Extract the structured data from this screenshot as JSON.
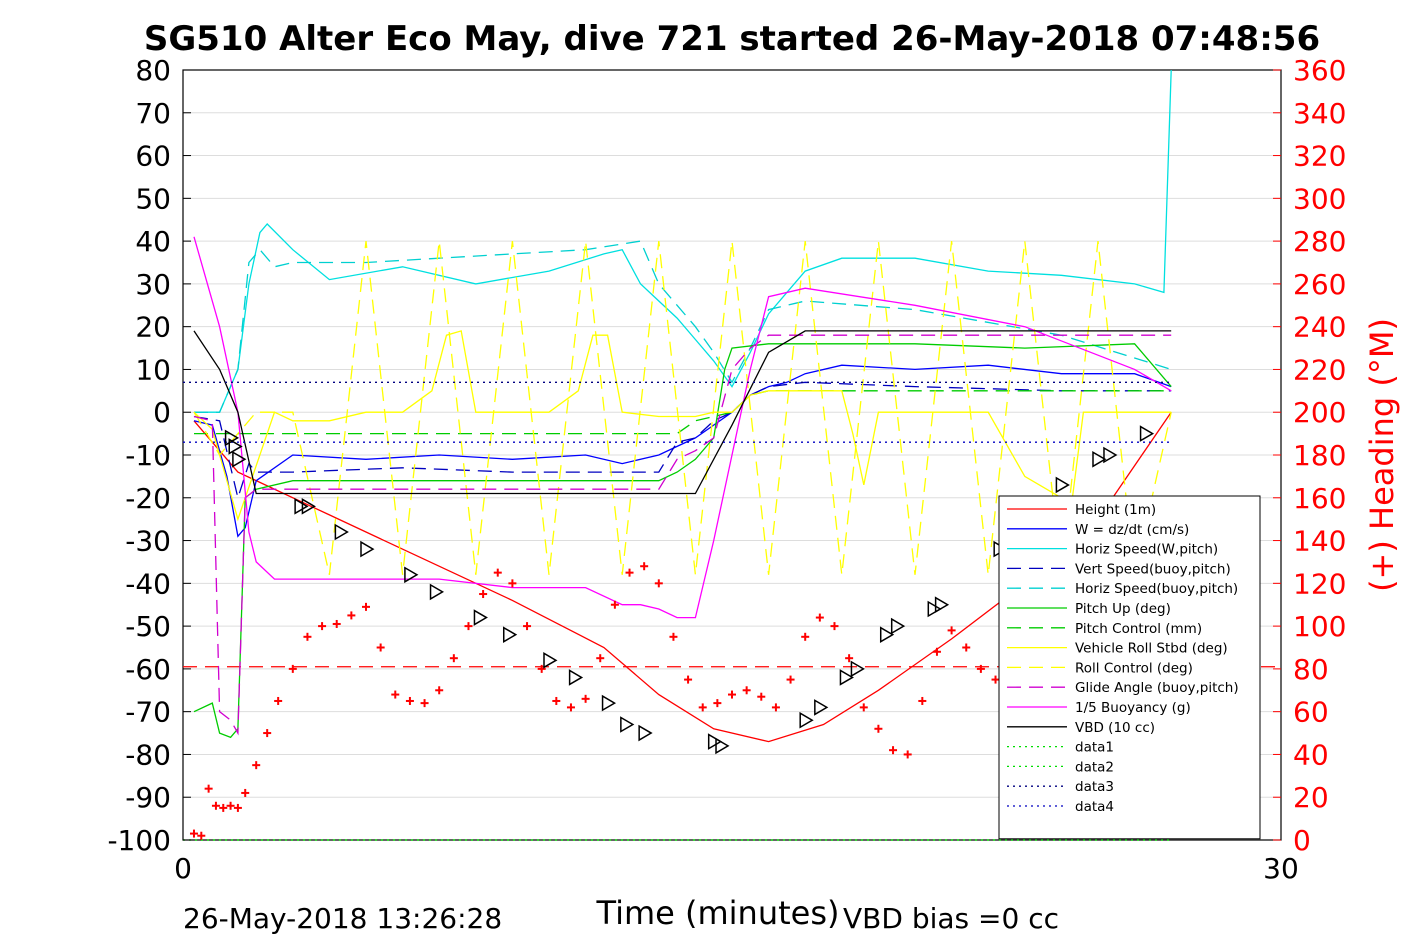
{
  "chart_data": {
    "type": "line",
    "title": "SG510 Alter Eco May, dive 721 started 26-May-2018 07:48:56",
    "xlabel": "Time (minutes)",
    "ylabel": "",
    "y2label": "(+) Heading (°M)",
    "xlim": [
      0,
      30
    ],
    "ylim": [
      -100,
      80
    ],
    "y2lim": [
      0,
      360
    ],
    "xticks": [
      "0",
      "30"
    ],
    "yticks": [
      "80",
      "70",
      "60",
      "50",
      "40",
      "30",
      "20",
      "10",
      "0",
      "-10",
      "-20",
      "-30",
      "-40",
      "-50",
      "-60",
      "-70",
      "-80",
      "-90",
      "-100"
    ],
    "y2ticks": [
      "360",
      "340",
      "320",
      "300",
      "280",
      "260",
      "240",
      "220",
      "200",
      "180",
      "160",
      "140",
      "120",
      "100",
      "80",
      "60",
      "40",
      "20",
      "0"
    ],
    "grid": true,
    "legend_position": "right",
    "series": [
      {
        "name": "Height (1m)",
        "color": "#ff0000",
        "style": "solid",
        "x": [
          0.3,
          1.5,
          4.0,
          6.5,
          9.0,
          11.5,
          13.0,
          14.5,
          16.0,
          17.5,
          19.0,
          21.0,
          23.0,
          25.0,
          27.0
        ],
        "y": [
          -2,
          -14,
          -24,
          -34,
          -44,
          -55,
          -66,
          -74,
          -77,
          -73,
          -65,
          -53,
          -40,
          -25,
          0
        ]
      },
      {
        "name": "W = dz/dt (cm/s)",
        "color": "#0000ff",
        "style": "solid",
        "x": [
          0.3,
          0.8,
          1.2,
          1.5,
          1.7,
          2.0,
          3.0,
          5.0,
          7.0,
          9.0,
          11.0,
          12.0,
          13.0,
          13.5,
          14.0,
          14.5,
          15.0,
          15.5,
          16.0,
          16.5,
          17.0,
          18.0,
          20.0,
          22.0,
          24.0,
          26.0,
          27.0
        ],
        "y": [
          -2,
          -3,
          -15,
          -29,
          -27,
          -16,
          -10,
          -11,
          -10,
          -11,
          -10,
          -12,
          -10,
          -8,
          -6,
          -3,
          0,
          4,
          6,
          7,
          9,
          11,
          10,
          11,
          9,
          9,
          6
        ]
      },
      {
        "name": "Horiz Speed(W,pitch)",
        "color": "#00e0e0",
        "style": "solid",
        "x": [
          0.3,
          1.0,
          1.5,
          1.8,
          2.1,
          2.3,
          3.0,
          4.0,
          6.0,
          8.0,
          10.0,
          11.5,
          12.0,
          12.5,
          13.0,
          13.5,
          14.0,
          14.5,
          15.0,
          15.5,
          16.0,
          16.5,
          17.0,
          18.0,
          20.0,
          22.0,
          24.0,
          26.0,
          26.8,
          27.0
        ],
        "y": [
          0,
          0,
          10,
          30,
          42,
          44,
          38,
          31,
          34,
          30,
          33,
          37,
          38,
          30,
          26,
          22,
          17,
          12,
          6,
          14,
          23,
          28,
          33,
          36,
          36,
          33,
          32,
          30,
          28,
          80
        ]
      },
      {
        "name": "Vert Speed(buoy,pitch)",
        "color": "#0000c0",
        "style": "dashed",
        "x": [
          0.3,
          1.0,
          1.5,
          1.8,
          2.0,
          3.0,
          6.0,
          9.0,
          12.0,
          13.0,
          13.5,
          14.0,
          14.5,
          15.0,
          15.5,
          16.0,
          17.0,
          20.0,
          24.0,
          27.0
        ],
        "y": [
          -1,
          -2,
          -20,
          -12,
          -14,
          -14,
          -13,
          -14,
          -14,
          -14,
          -7,
          -6,
          -2,
          0,
          4,
          6,
          7,
          6,
          5,
          5
        ]
      },
      {
        "name": "Horiz Speed(buoy,pitch)",
        "color": "#00d0d0",
        "style": "dashed",
        "x": [
          0.3,
          1.0,
          1.5,
          1.8,
          2.1,
          2.5,
          3.0,
          5.0,
          7.0,
          9.0,
          11.0,
          12.5,
          13.0,
          13.5,
          14.0,
          14.5,
          15.0,
          15.5,
          16.0,
          17.0,
          20.0,
          24.0,
          27.0
        ],
        "y": [
          0,
          0,
          10,
          35,
          38,
          34,
          35,
          35,
          36,
          37,
          38,
          40,
          30,
          25,
          20,
          14,
          7,
          15,
          24,
          26,
          24,
          18,
          10
        ]
      },
      {
        "name": "Pitch Up (deg)",
        "color": "#00cc00",
        "style": "solid",
        "x": [
          0.3,
          0.8,
          1.0,
          1.3,
          1.5,
          1.7,
          2.0,
          3.0,
          5.0,
          7.0,
          9.0,
          11.0,
          12.0,
          13.0,
          13.5,
          14.0,
          14.5,
          14.8,
          15.0,
          16.0,
          17.0,
          20.0,
          23.0,
          26.0,
          27.0
        ],
        "y": [
          -70,
          -68,
          -75,
          -76,
          -74,
          -20,
          -18,
          -16,
          -16,
          -16,
          -16,
          -16,
          -16,
          -16,
          -14,
          -11,
          -6,
          10,
          15,
          16,
          16,
          16,
          15,
          16,
          6
        ]
      },
      {
        "name": "Pitch Control (mm)",
        "color": "#00cc00",
        "style": "dashed",
        "x": [
          0.3,
          1.0,
          1.5,
          2.0,
          3.0,
          6.0,
          9.0,
          12.0,
          13.0,
          13.5,
          14.0,
          14.5,
          15.0,
          15.5,
          16.0,
          20.0,
          24.0,
          27.0
        ],
        "y": [
          -5,
          -5,
          -5,
          -5,
          -5,
          -5,
          -5,
          -5,
          -5,
          -5,
          -2,
          -1,
          0,
          4,
          5,
          5,
          5,
          5
        ]
      },
      {
        "name": "Vehicle Roll Stbd (deg)",
        "color": "#ffff00",
        "style": "solid",
        "x": [
          0.3,
          0.8,
          1.5,
          2.5,
          3.0,
          4.0,
          5.0,
          6.0,
          6.8,
          7.2,
          7.6,
          8.0,
          9.0,
          10.0,
          10.8,
          11.2,
          11.6,
          12.0,
          13.0,
          14.0,
          14.5,
          15.0,
          15.5,
          16.0,
          17.0,
          18.0,
          18.3,
          18.6,
          19.0,
          20.0,
          22.0,
          23.0,
          24.0,
          24.3,
          24.6,
          25.0,
          26.0,
          27.0
        ],
        "y": [
          0,
          -4,
          -25,
          0,
          -2,
          -2,
          0,
          0,
          5,
          18,
          19,
          0,
          0,
          0,
          5,
          18,
          18,
          0,
          -1,
          -1,
          0,
          0,
          4,
          5,
          5,
          5,
          -5,
          -17,
          0,
          0,
          0,
          -15,
          -20,
          -20,
          0,
          0,
          0,
          0
        ]
      },
      {
        "name": "Roll Control (deg)",
        "color": "#ffff00",
        "style": "dashed",
        "x": [
          0.3,
          1.0,
          2.0,
          3.0,
          4.0,
          5.0,
          6.0,
          7.0,
          8.0,
          9.0,
          10.0,
          11.0,
          12.0,
          13.0,
          14.0,
          15.0,
          16.0,
          17.0,
          18.0,
          19.0,
          20.0,
          21.0,
          22.0,
          23.0,
          24.0,
          25.0,
          26.0,
          27.0
        ],
        "y": [
          0,
          -10,
          0,
          0,
          -38,
          40,
          -38,
          40,
          -38,
          40,
          -38,
          40,
          -38,
          40,
          -38,
          40,
          -38,
          40,
          -38,
          40,
          -38,
          40,
          -38,
          40,
          -38,
          40,
          -38,
          0
        ]
      },
      {
        "name": "Glide Angle (buoy,pitch)",
        "color": "#d000d0",
        "style": "dashed",
        "x": [
          0.3,
          0.8,
          1.0,
          1.3,
          1.5,
          1.7,
          2.0,
          3.0,
          6.0,
          9.0,
          12.0,
          13.0,
          13.5,
          14.0,
          14.5,
          15.0,
          15.5,
          16.0,
          17.0,
          20.0,
          24.0,
          27.0
        ],
        "y": [
          -1,
          -2,
          -70,
          -72,
          -75,
          -20,
          -18,
          -18,
          -18,
          -18,
          -18,
          -18,
          -11,
          -9,
          -6,
          10,
          15,
          18,
          18,
          18,
          18,
          18
        ]
      },
      {
        "name": "1/5 Buoyancy (g)",
        "color": "#ff00ff",
        "style": "solid",
        "x": [
          0.3,
          1.0,
          1.5,
          1.8,
          2.0,
          2.5,
          3.0,
          5.0,
          7.0,
          9.0,
          10.0,
          11.0,
          12.0,
          12.5,
          13.0,
          13.5,
          14.0,
          14.5,
          15.0,
          15.5,
          16.0,
          17.0,
          20.0,
          23.0,
          26.0,
          27.0
        ],
        "y": [
          41,
          20,
          0,
          -28,
          -35,
          -39,
          -39,
          -39,
          -39,
          -41,
          -41,
          -41,
          -45,
          -45,
          -46,
          -48,
          -48,
          -30,
          -10,
          10,
          27,
          29,
          25,
          20,
          10,
          5
        ]
      },
      {
        "name": "VBD (10 cc)",
        "color": "#000000",
        "style": "solid",
        "x": [
          0.3,
          1.0,
          1.5,
          2.0,
          3.0,
          6.0,
          9.0,
          12.0,
          13.0,
          14.0,
          15.0,
          16.0,
          17.0,
          20.0,
          24.0,
          27.0
        ],
        "y": [
          19,
          10,
          0,
          -19,
          -19,
          -19,
          -19,
          -19,
          -19,
          -19,
          -3,
          14,
          19,
          19,
          19,
          19
        ]
      },
      {
        "name": "data1",
        "color": "#00dd00",
        "style": "dotted",
        "x": [
          0,
          27
        ],
        "y": [
          -100,
          -100
        ]
      },
      {
        "name": "data2",
        "color": "#00dd00",
        "style": "dotted",
        "x": [
          0,
          27
        ],
        "y": [
          -100,
          -100
        ]
      },
      {
        "name": "data3",
        "color": "#000080",
        "style": "dotted",
        "x": [
          0,
          27
        ],
        "y": [
          7,
          7
        ]
      },
      {
        "name": "data4",
        "color": "#0000c0",
        "style": "dotted",
        "x": [
          0,
          27
        ],
        "y": [
          -7,
          -7
        ]
      }
    ],
    "heading_series": {
      "color": "#ff0000",
      "marker": "+",
      "axis": "right",
      "x": [
        0.3,
        0.5,
        0.7,
        0.9,
        1.1,
        1.3,
        1.5,
        1.7,
        2.0,
        2.3,
        2.6,
        3.0,
        3.4,
        3.8,
        4.2,
        4.6,
        5.0,
        5.4,
        5.8,
        6.2,
        6.6,
        7.0,
        7.4,
        7.8,
        8.2,
        8.6,
        9.0,
        9.4,
        9.8,
        10.2,
        10.6,
        11.0,
        11.4,
        11.8,
        12.2,
        12.6,
        13.0,
        13.4,
        13.8,
        14.2,
        14.6,
        15.0,
        15.4,
        15.8,
        16.2,
        16.6,
        17.0,
        17.4,
        17.8,
        18.2,
        18.6,
        19.0,
        19.4,
        19.8,
        20.2,
        20.6,
        21.0,
        21.4,
        21.8,
        22.2,
        22.6,
        23.0,
        23.4,
        23.8,
        24.2,
        24.6,
        25.0,
        25.4,
        25.8,
        26.2,
        26.6,
        27.0
      ],
      "y": [
        3,
        2,
        24,
        16,
        15,
        16,
        15,
        22,
        35,
        50,
        65,
        80,
        95,
        100,
        101,
        105,
        109,
        90,
        68,
        65,
        64,
        70,
        85,
        100,
        115,
        125,
        120,
        100,
        80,
        65,
        62,
        66,
        85,
        110,
        125,
        128,
        120,
        95,
        75,
        62,
        64,
        68,
        70,
        67,
        62,
        75,
        95,
        104,
        100,
        85,
        62,
        52,
        42,
        40,
        65,
        88,
        98,
        90,
        80,
        75,
        72,
        70,
        68,
        66,
        70,
        85,
        90,
        88,
        85,
        80,
        78,
        75
      ]
    },
    "height_markers": {
      "marker": "triangle-right",
      "x": [
        1.3,
        1.4,
        1.5,
        3.2,
        3.4,
        4.3,
        5.0,
        6.2,
        6.9,
        8.1,
        8.9,
        10.0,
        10.7,
        11.6,
        12.1,
        12.6,
        14.5,
        14.7,
        17.0,
        17.4,
        18.1,
        18.4,
        19.2,
        19.5,
        20.5,
        20.7,
        22.3,
        22.5,
        24.0,
        25.0,
        25.3,
        26.3
      ],
      "y": [
        -6,
        -8,
        -11,
        -22,
        -22,
        -28,
        -32,
        -38,
        -42,
        -48,
        -52,
        -58,
        -62,
        -68,
        -73,
        -75,
        -77,
        -78,
        -72,
        -69,
        -62,
        -60,
        -52,
        -50,
        -46,
        -45,
        -32,
        -30,
        -17,
        -11,
        -10,
        -5
      ]
    },
    "reference_lines": [
      {
        "label": "",
        "color": "#ff0000",
        "style": "dashed",
        "y": -59.5
      }
    ]
  },
  "footer": {
    "left": "26-May-2018 13:26:28",
    "right": "VBD bias =0 cc"
  }
}
